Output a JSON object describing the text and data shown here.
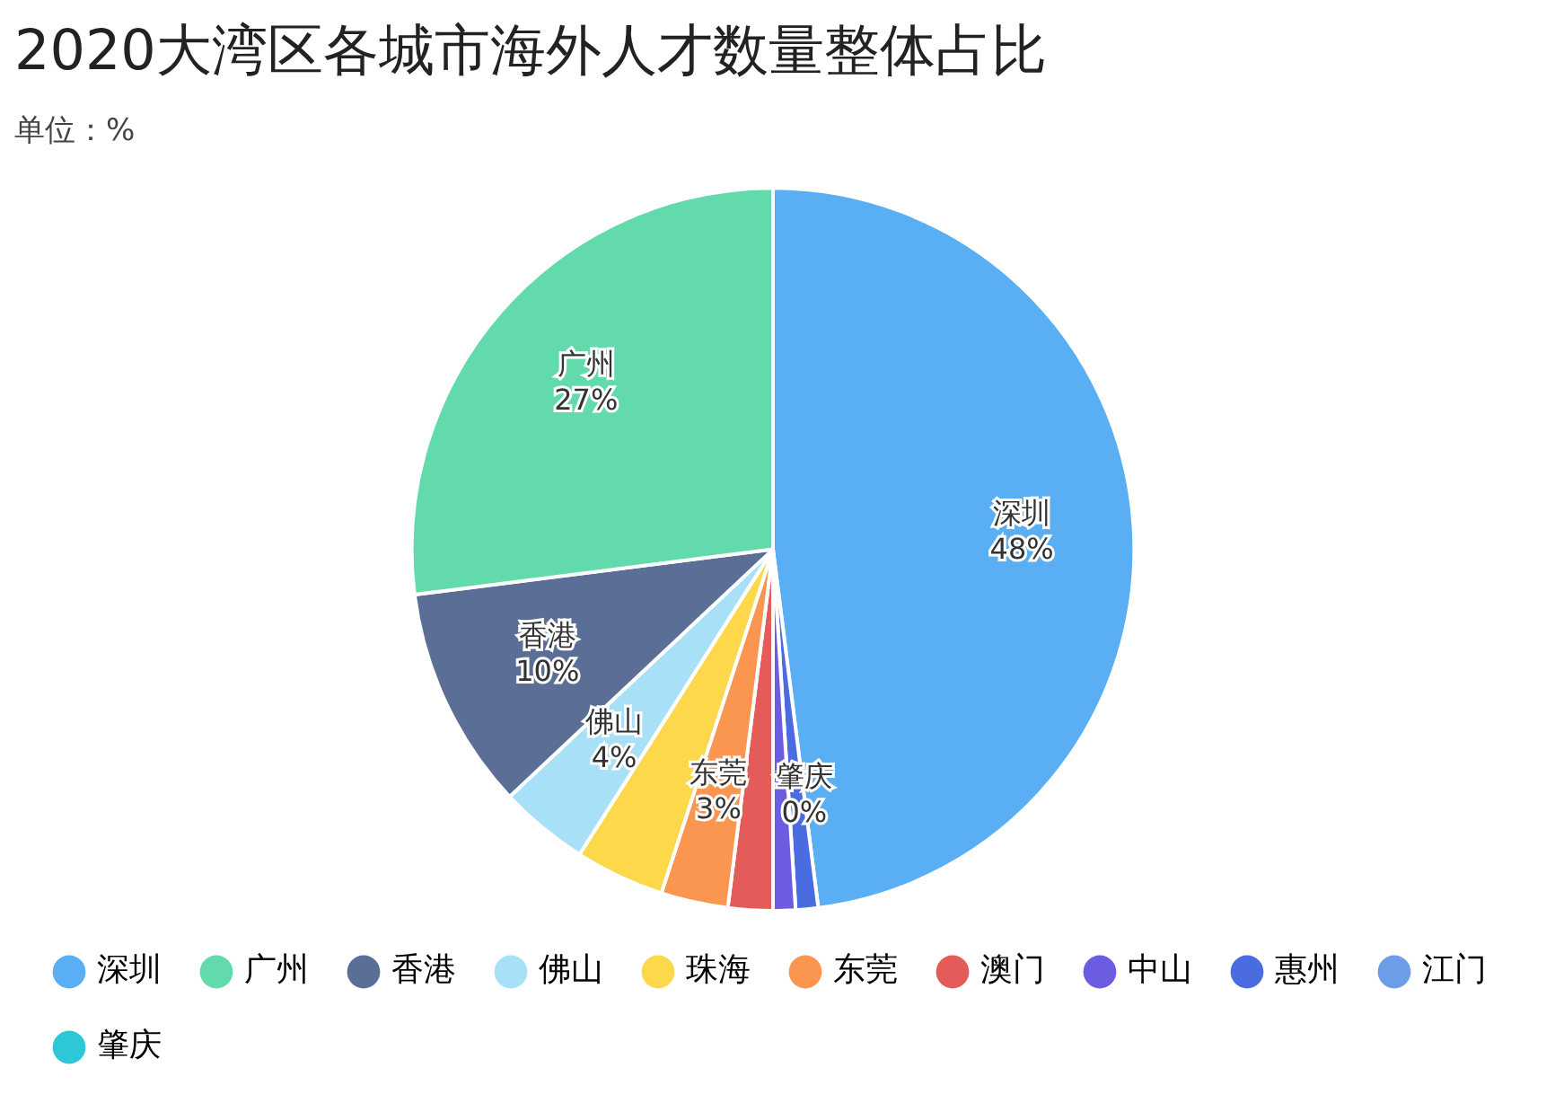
{
  "chart_data": {
    "type": "pie",
    "title": "2020大湾区各城市海外人才数量整体占比",
    "subtitle": "单位：%",
    "categories": [
      "深圳",
      "广州",
      "香港",
      "佛山",
      "珠海",
      "东莞",
      "澳门",
      "中山",
      "惠州",
      "江门",
      "肇庆"
    ],
    "values": [
      48,
      27,
      10,
      4,
      4,
      3,
      2,
      1,
      1,
      0,
      0
    ],
    "colors": [
      "#5aaef3",
      "#62daab",
      "#5b6e96",
      "#a8e0f8",
      "#fcd84a",
      "#fb9650",
      "#e45c5a",
      "#6c5ce0",
      "#4b6be0",
      "#6e9de8",
      "#2ec7d8"
    ],
    "value_labels": [
      "48%",
      "27%",
      "10%",
      "4%",
      null,
      "3%",
      null,
      null,
      null,
      null,
      "0%"
    ],
    "legend": "bottom"
  }
}
